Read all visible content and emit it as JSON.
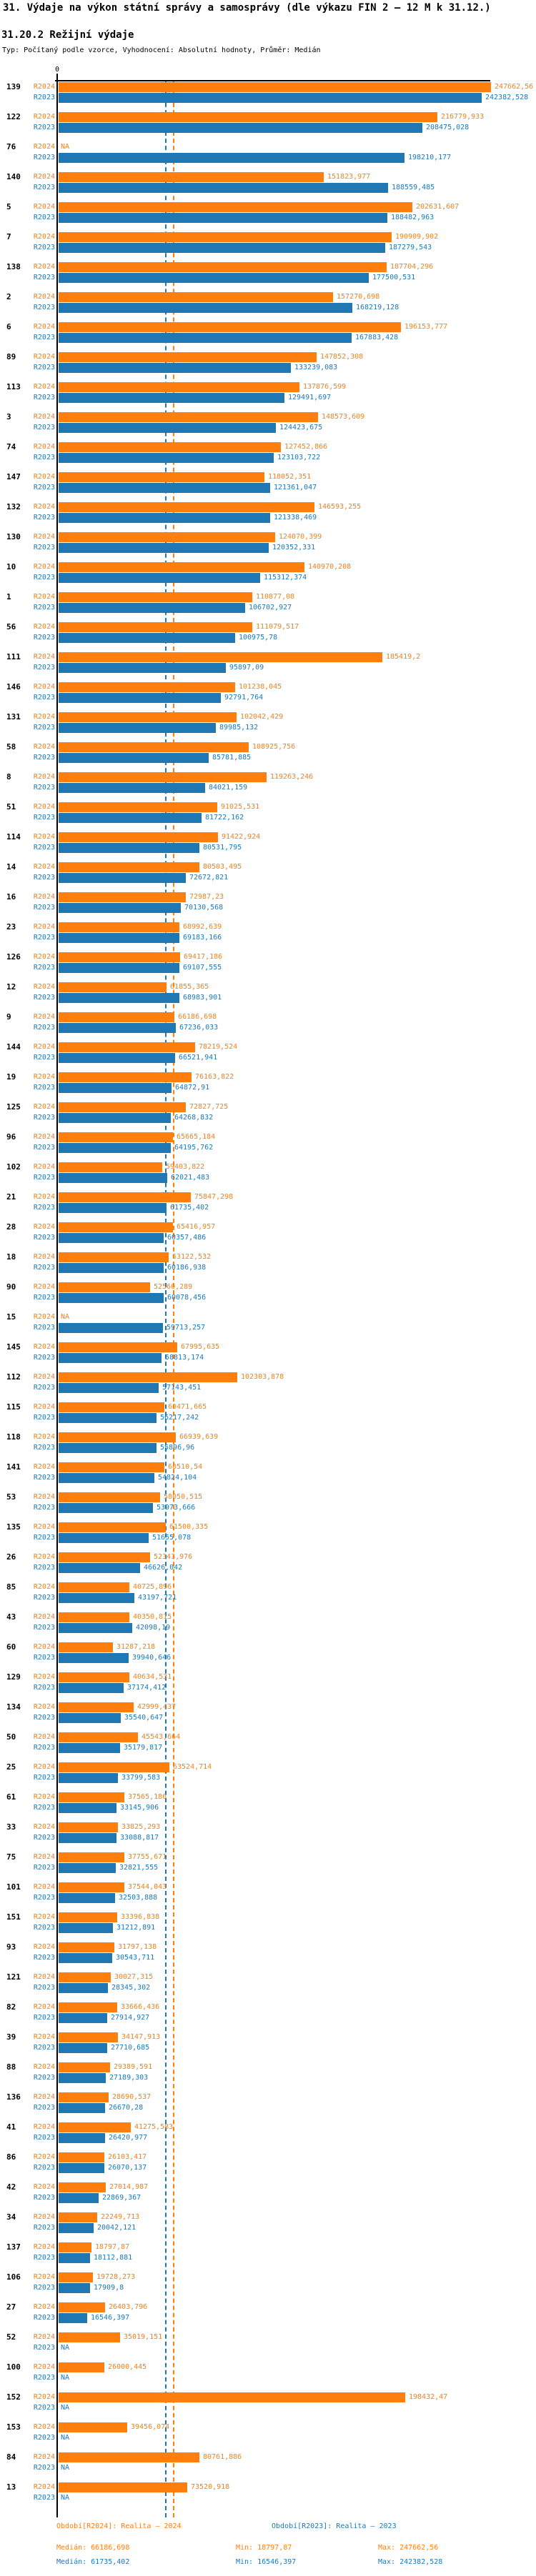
{
  "header": {
    "title": "31. Výdaje na výkon státní správy a samosprávy (dle výkazu FIN 2 – 12 M k 31.12.)",
    "subtitle": "31.20.2 Režijní výdaje",
    "type_line": "Typ: Počítaný podle vzorce, Vyhodnocení: Absolutní hodnoty, Průměr: Medián"
  },
  "axis": {
    "zero_label": "0"
  },
  "colors": {
    "r2024": "#ff7f0e",
    "r2023": "#1f77b4",
    "axis": "#000000"
  },
  "na_label": "NA",
  "legend": {
    "r2024": "Období[R2024]: Realita – 2024",
    "r2023": "Období[R2023]: Realita – 2023"
  },
  "stats": {
    "r2024": {
      "median": "Medián: 66186,698",
      "min": "Min: 18797,87",
      "max": "Max: 247662,56"
    },
    "r2023": {
      "median": "Medián: 61735,402",
      "min": "Min: 16546,397",
      "max": "Max: 242382,528"
    }
  },
  "chart_data": {
    "type": "bar",
    "orientation": "horizontal",
    "title": "31.20.2 Režijní výdaje",
    "series_names": [
      "R2024",
      "R2023"
    ],
    "series_labels": {
      "R2024": "Realita - 2024",
      "R2023": "Realita - 2023"
    },
    "xlim": [
      0,
      251000
    ],
    "grid": false,
    "value_format": "decimal-comma",
    "medians": {
      "R2024": 66186.698,
      "R2023": 61735.402
    },
    "min": {
      "R2024": 18797.87,
      "R2023": 16546.397
    },
    "max": {
      "R2024": 247662.56,
      "R2023": 242382.528
    },
    "rows_columns": [
      "id",
      "R2024",
      "R2023"
    ],
    "rows": [
      [
        "139",
        247662.56,
        242382.528
      ],
      [
        "122",
        216779.933,
        208475.028
      ],
      [
        "76",
        null,
        198210.177
      ],
      [
        "140",
        151823.977,
        188559.485
      ],
      [
        "5",
        202631.607,
        188482.963
      ],
      [
        "7",
        190909.902,
        187279.543
      ],
      [
        "138",
        187704.296,
        177500.531
      ],
      [
        "2",
        157270.698,
        168219.128
      ],
      [
        "6",
        196153.777,
        167883.428
      ],
      [
        "89",
        147852.308,
        133239.083
      ],
      [
        "113",
        137876.599,
        129491.697
      ],
      [
        "3",
        148573.609,
        124423.675
      ],
      [
        "74",
        127452.866,
        123103.722
      ],
      [
        "147",
        118052.351,
        121361.047
      ],
      [
        "132",
        146593.255,
        121338.469
      ],
      [
        "130",
        124070.399,
        120352.331
      ],
      [
        "10",
        140970.208,
        115312.374
      ],
      [
        "1",
        110877.08,
        106702.927
      ],
      [
        "56",
        111079.517,
        100975.78
      ],
      [
        "111",
        185419.2,
        95897.09
      ],
      [
        "146",
        101238.045,
        92791.764
      ],
      [
        "131",
        102042.429,
        89985.132
      ],
      [
        "58",
        108925.756,
        85781.885
      ],
      [
        "8",
        119263.246,
        84021.159
      ],
      [
        "51",
        91025.531,
        81722.162
      ],
      [
        "114",
        91422.924,
        80531.795
      ],
      [
        "14",
        80503.495,
        72672.821
      ],
      [
        "16",
        72987.23,
        70130.568
      ],
      [
        "23",
        68992.639,
        69183.166
      ],
      [
        "126",
        69417.186,
        69107.555
      ],
      [
        "12",
        61855.365,
        68983.901
      ],
      [
        "9",
        66186.698,
        67236.033
      ],
      [
        "144",
        78219.524,
        66521.941
      ],
      [
        "19",
        76163.822,
        64872.91
      ],
      [
        "125",
        72827.725,
        64268.832
      ],
      [
        "96",
        65665.184,
        64195.762
      ],
      [
        "102",
        59403.822,
        62021.483
      ],
      [
        "21",
        75847.298,
        61735.402
      ],
      [
        "28",
        65416.957,
        60357.486
      ],
      [
        "18",
        63122.532,
        60186.938
      ],
      [
        "90",
        52560.289,
        60078.456
      ],
      [
        "15",
        null,
        59713.257
      ],
      [
        "145",
        67995.635,
        58813.174
      ],
      [
        "112",
        102303.878,
        57143.451
      ],
      [
        "115",
        60471.665,
        56217.242
      ],
      [
        "118",
        66939.639,
        55896.96
      ],
      [
        "141",
        60510.54,
        54824.104
      ],
      [
        "53",
        58050.515,
        53973.666
      ],
      [
        "135",
        61500.335,
        51655.078
      ],
      [
        "26",
        52343.976,
        46626.042
      ],
      [
        "85",
        40725.896,
        43197.721
      ],
      [
        "43",
        40350.815,
        42098.19
      ],
      [
        "60",
        31287.218,
        39940.646
      ],
      [
        "129",
        40634.531,
        37174.412
      ],
      [
        "134",
        42999.437,
        35540.647
      ],
      [
        "50",
        45543.664,
        35179.817
      ],
      [
        "25",
        63524.714,
        33799.583
      ],
      [
        "61",
        37565.186,
        33145.906
      ],
      [
        "33",
        33825.293,
        33088.817
      ],
      [
        "75",
        37755.671,
        32821.555
      ],
      [
        "101",
        37544.043,
        32503.888
      ],
      [
        "151",
        33396.838,
        31212.891
      ],
      [
        "93",
        31797.138,
        30543.711
      ],
      [
        "121",
        30027.315,
        28345.302
      ],
      [
        "82",
        33666.436,
        27914.927
      ],
      [
        "39",
        34147.913,
        27710.685
      ],
      [
        "88",
        29389.591,
        27189.303
      ],
      [
        "136",
        28690.537,
        26670.28
      ],
      [
        "41",
        41275.583,
        26420.977
      ],
      [
        "86",
        26103.417,
        26070.137
      ],
      [
        "42",
        27014.987,
        22869.367
      ],
      [
        "34",
        22249.713,
        20042.121
      ],
      [
        "137",
        18797.87,
        18112.881
      ],
      [
        "106",
        19728.273,
        17909.8
      ],
      [
        "27",
        26403.796,
        16546.397
      ],
      [
        "52",
        35019.151,
        null
      ],
      [
        "100",
        26000.445,
        null
      ],
      [
        "152",
        198432.47,
        null
      ],
      [
        "153",
        39456.074,
        null
      ],
      [
        "84",
        80761.886,
        null
      ],
      [
        "13",
        73520.918,
        null
      ]
    ]
  }
}
